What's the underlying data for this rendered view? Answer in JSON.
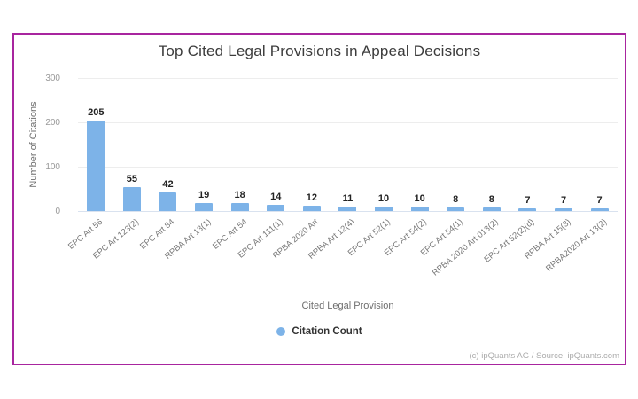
{
  "card": {
    "border_color": "#a8259f",
    "background": "#ffffff"
  },
  "chart_data": {
    "type": "bar",
    "title": "Top Cited Legal Provisions in Appeal Decisions",
    "xlabel": "Cited Legal Provision",
    "ylabel": "Number of Citations",
    "categories": [
      "EPC Art 56",
      "EPC Art 123(2)",
      "EPC Art 84",
      "RPBA Art 13(1)",
      "EPC Art 54",
      "EPC Art 111(1)",
      "RPBA 2020 Art",
      "RPBA Art 12(4)",
      "EPC Art 52(1)",
      "EPC Art 54(2)",
      "EPC Art 54(1)",
      "RPBA 2020 Art 013(2)",
      "EPC Art 52(2)(d)",
      "RPBA Art 15(3)",
      "RPBA2020 Art 13(2)"
    ],
    "values": [
      205,
      55,
      42,
      19,
      18,
      14,
      12,
      11,
      10,
      10,
      8,
      8,
      7,
      7,
      7
    ],
    "ylim": [
      0,
      300
    ],
    "yticks": [
      0,
      100,
      200,
      300
    ],
    "grid": true,
    "value_labels": true,
    "bar_color": "#7db3e8",
    "legend": {
      "label": "Citation Count",
      "position": "bottom"
    }
  },
  "footer": {
    "attribution": "(c) ipQuants AG / Source: ipQuants.com"
  }
}
